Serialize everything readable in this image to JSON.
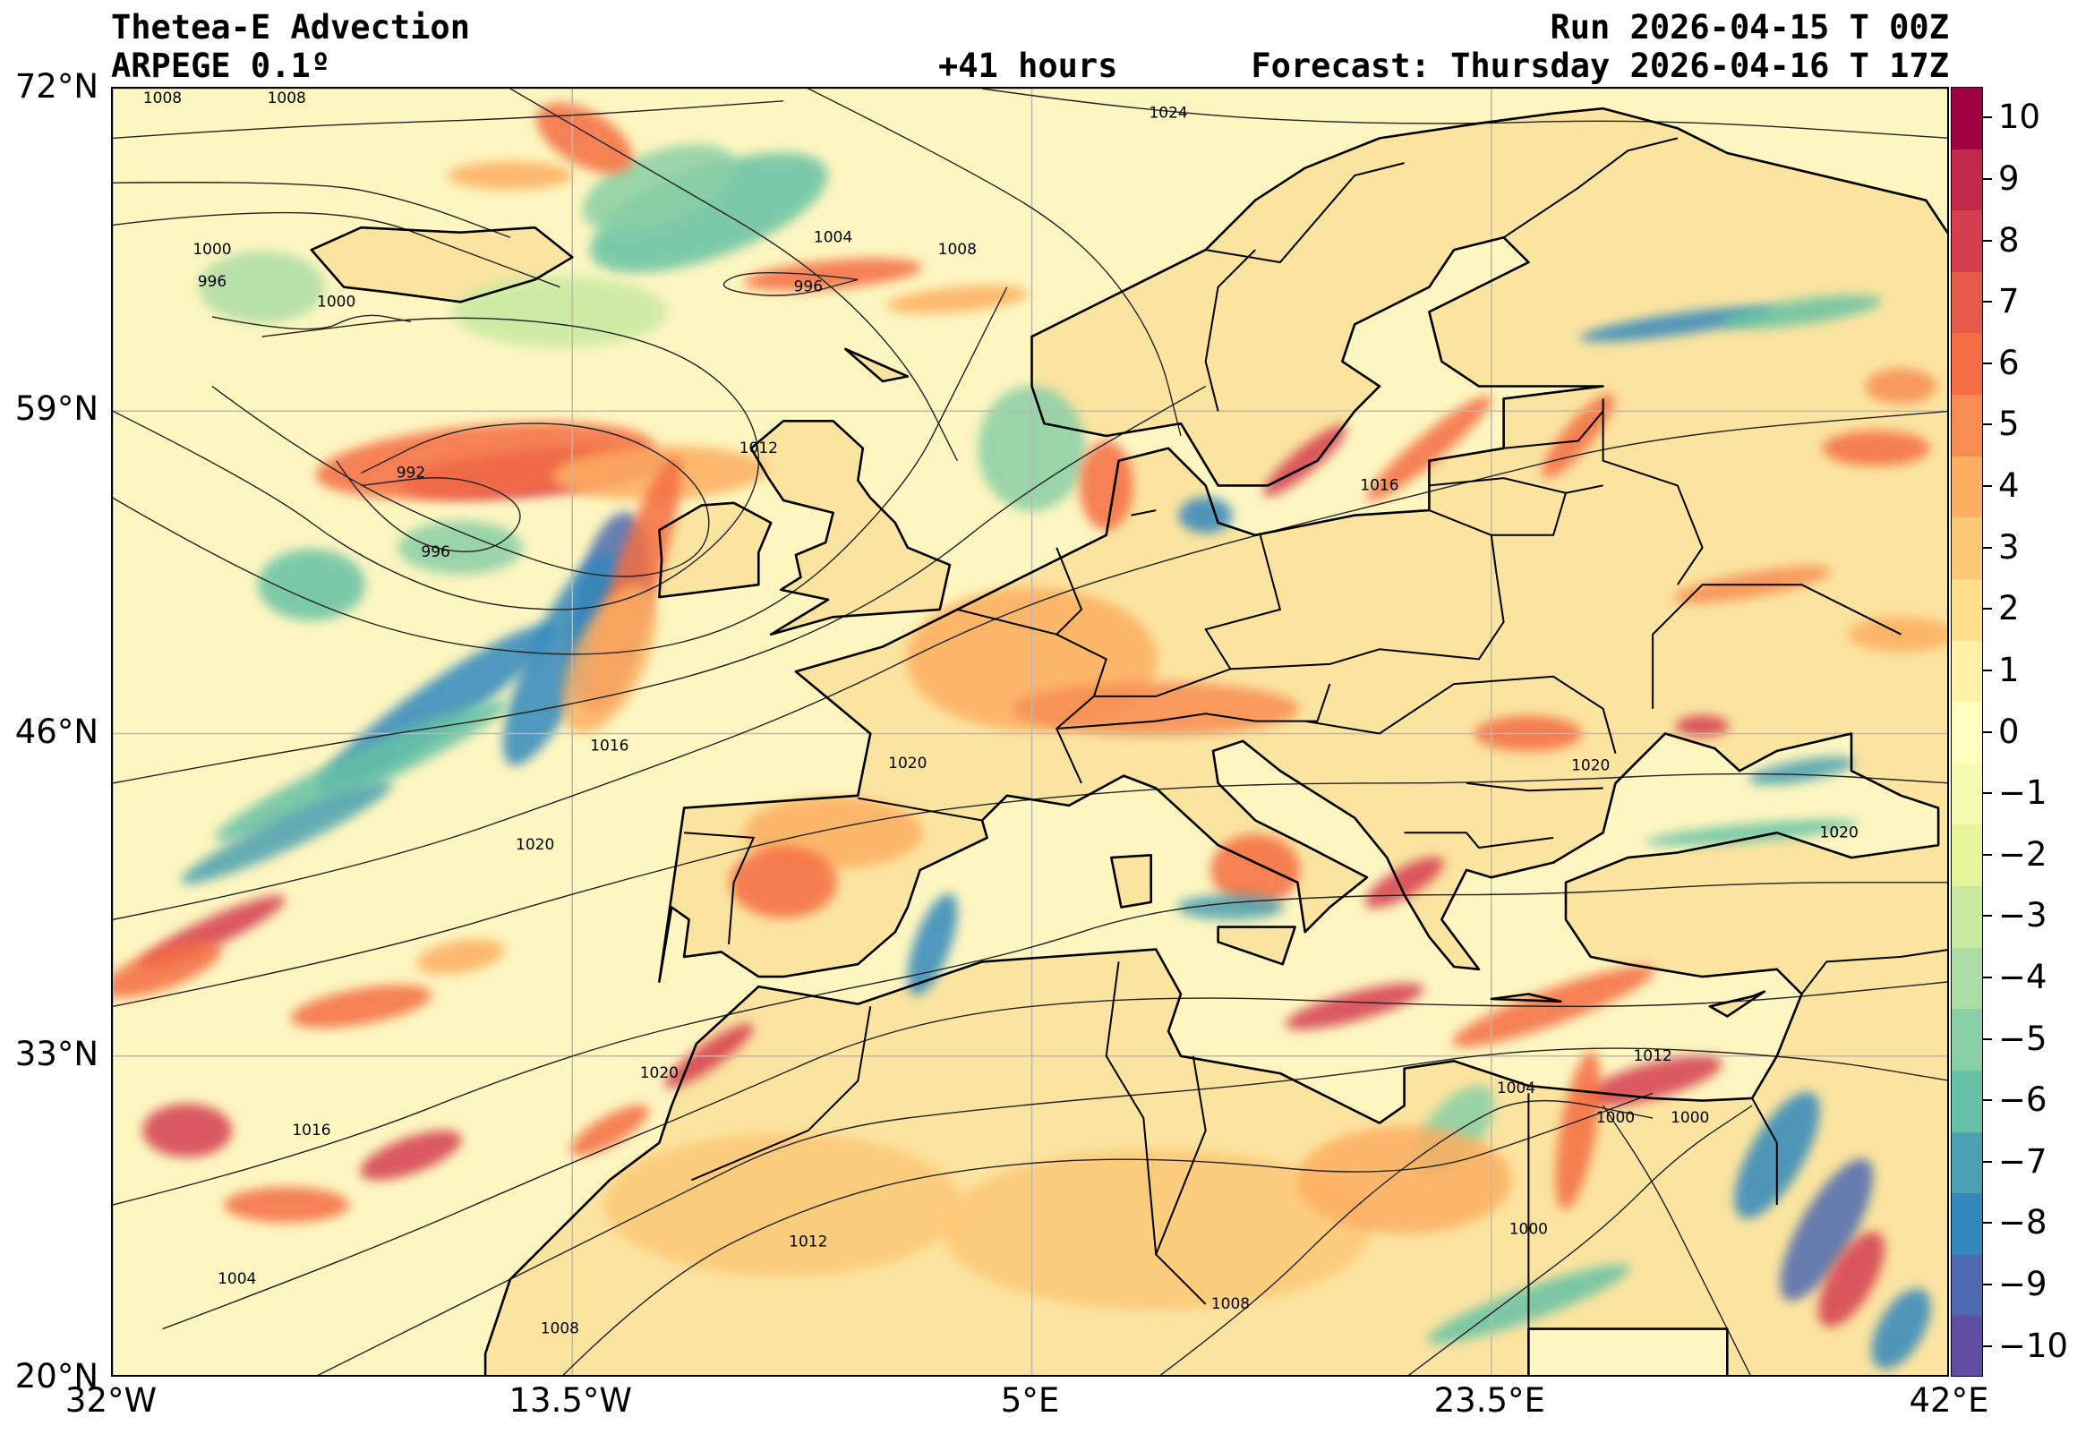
{
  "header": {
    "title": "Thetea-E Advection",
    "model": "ARPEGE 0.1º",
    "lead_time": "+41 hours",
    "run": "Run 2026-04-15 T 00Z",
    "forecast": "Forecast: Thursday 2026-04-16 T 17Z"
  },
  "map": {
    "lon_range": [
      -32,
      42
    ],
    "lat_range": [
      20,
      72
    ],
    "lon_ticks": [
      {
        "value": -32,
        "label": "32°W"
      },
      {
        "value": -13.5,
        "label": "13.5°W"
      },
      {
        "value": 5,
        "label": "5°E"
      },
      {
        "value": 23.5,
        "label": "23.5°E"
      },
      {
        "value": 42,
        "label": "42°E"
      }
    ],
    "lat_ticks": [
      {
        "value": 72,
        "label": "72°N"
      },
      {
        "value": 59,
        "label": "59°N"
      },
      {
        "value": 46,
        "label": "46°N"
      },
      {
        "value": 33,
        "label": "33°N"
      },
      {
        "value": 20,
        "label": "20°N"
      }
    ],
    "grid": true,
    "background_color": "#fdf6c0",
    "land_color": "#fbe4a0",
    "isobar_labels": [
      "1008",
      "1008",
      "1024",
      "1004",
      "1008",
      "1000",
      "996",
      "1000",
      "996",
      "1012",
      "992",
      "996",
      "1016",
      "1016",
      "1020",
      "1020",
      "1020",
      "1020",
      "1016",
      "1020",
      "1012",
      "1012",
      "1000",
      "1004",
      "1000",
      "1000",
      "1008",
      "1004",
      "1008"
    ]
  },
  "colorbar": {
    "ticks": [
      "10",
      "9",
      "8",
      "7",
      "6",
      "5",
      "4",
      "3",
      "2",
      "1",
      "0",
      "−1",
      "−2",
      "−3",
      "−4",
      "−5",
      "−6",
      "−7",
      "−8",
      "−9",
      "−10"
    ],
    "colors": [
      "#9e0142",
      "#c2294a",
      "#d53e4f",
      "#e55c4b",
      "#f46d43",
      "#f88d52",
      "#fdae61",
      "#fdc877",
      "#fee08b",
      "#fff1a8",
      "#ffffbf",
      "#f5fbb0",
      "#e6f598",
      "#c7e9a0",
      "#abdda4",
      "#89cfa5",
      "#66c2a5",
      "#4ba0b1",
      "#3288bd",
      "#4d6ab0",
      "#5e4fa2"
    ]
  }
}
